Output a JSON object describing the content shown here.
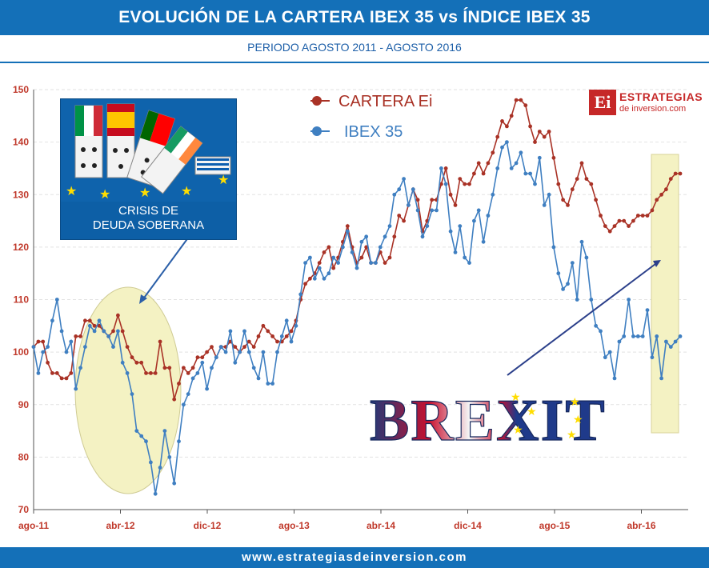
{
  "header": {
    "title": "EVOLUCIÓN DE LA CARTERA IBEX 35 vs ÍNDICE IBEX 35"
  },
  "subtitle": "PERIODO AGOSTO 2011 - AGOSTO 2016",
  "footer": {
    "url": "www.estrategiasdeinversion.com"
  },
  "logo": {
    "mark": "Ei",
    "name": "ESTRATEGIAS",
    "tagline": "de inversion.com"
  },
  "annotations": {
    "crisis": "CRISIS DE DEUDA SOBERANA",
    "crisis_line1": "CRISIS DE",
    "crisis_line2": "DEUDA SOBERANA",
    "brexit": "BREXIT",
    "flags": [
      "Italia",
      "España",
      "Portugal",
      "Irlanda",
      "Grecia"
    ]
  },
  "colors": {
    "cartera": "#a93226",
    "ibex": "#3f7fc1",
    "header": "#1470b8",
    "highlight": "#f4f2c3",
    "brand": "#c62828"
  },
  "chart_data": {
    "type": "line",
    "title": "EVOLUCIÓN DE LA CARTERA IBEX 35 vs ÍNDICE IBEX 35",
    "subtitle": "PERIODO AGOSTO 2011 - AGOSTO 2016",
    "xlabel": "",
    "ylabel": "",
    "ylim": [
      70,
      150
    ],
    "yticks": [
      70,
      80,
      90,
      100,
      110,
      120,
      130,
      140,
      150
    ],
    "xticks": [
      "ago-11",
      "abr-12",
      "dic-12",
      "ago-13",
      "abr-14",
      "dic-14",
      "ago-15",
      "abr-16"
    ],
    "x_start": "ago-11",
    "x_end": "ago-16",
    "grid": true,
    "legend_position": "top-center",
    "series": [
      {
        "name": "CARTERA Ei",
        "color": "#a93226",
        "values": [
          101,
          102,
          102,
          98,
          96,
          96,
          95,
          95,
          96,
          103,
          103,
          106,
          106,
          105,
          105,
          104,
          103,
          104,
          107,
          104,
          101,
          99,
          98,
          98,
          96,
          96,
          96,
          102,
          97,
          97,
          91,
          94,
          97,
          96,
          97,
          99,
          99,
          100,
          101,
          99,
          101,
          101,
          102,
          101,
          100,
          101,
          102,
          101,
          103,
          105,
          104,
          103,
          102,
          102,
          103,
          104,
          106,
          110,
          113,
          114,
          115,
          117,
          119,
          120,
          116,
          118,
          121,
          124,
          120,
          117,
          118,
          120,
          117,
          117,
          119,
          117,
          118,
          122,
          126,
          125,
          128,
          131,
          129,
          123,
          125,
          129,
          129,
          132,
          135,
          130,
          128,
          133,
          132,
          132,
          134,
          136,
          134,
          136,
          138,
          141,
          144,
          143,
          145,
          148,
          148,
          147,
          143,
          140,
          142,
          141,
          142,
          137,
          132,
          129,
          128,
          131,
          133,
          136,
          133,
          132,
          129,
          126,
          124,
          123,
          124,
          125,
          125,
          124,
          125,
          126,
          126,
          126,
          127,
          129,
          130,
          131,
          133,
          134,
          134
        ]
      },
      {
        "name": "IBEX 35",
        "color": "#3f7fc1",
        "values": [
          101,
          96,
          100,
          101,
          106,
          110,
          104,
          100,
          102,
          93,
          97,
          101,
          105,
          104,
          106,
          104,
          103,
          101,
          104,
          98,
          96,
          92,
          85,
          84,
          83,
          79,
          73,
          78,
          85,
          80,
          75,
          83,
          90,
          92,
          95,
          96,
          98,
          93,
          97,
          99,
          101,
          100,
          104,
          98,
          100,
          104,
          100,
          97,
          95,
          100,
          94,
          94,
          100,
          103,
          106,
          102,
          105,
          111,
          117,
          118,
          114,
          116,
          114,
          115,
          118,
          117,
          120,
          123,
          119,
          116,
          121,
          122,
          117,
          117,
          120,
          122,
          124,
          130,
          131,
          133,
          128,
          131,
          127,
          122,
          124,
          127,
          127,
          135,
          132,
          123,
          119,
          124,
          118,
          117,
          125,
          127,
          121,
          126,
          130,
          135,
          139,
          140,
          135,
          136,
          138,
          134,
          134,
          132,
          137,
          128,
          130,
          120,
          115,
          112,
          113,
          117,
          110,
          121,
          118,
          110,
          105,
          104,
          99,
          100,
          95,
          102,
          103,
          110,
          103,
          103,
          103,
          108,
          99,
          103,
          95,
          102,
          101,
          102,
          103
        ]
      }
    ]
  }
}
